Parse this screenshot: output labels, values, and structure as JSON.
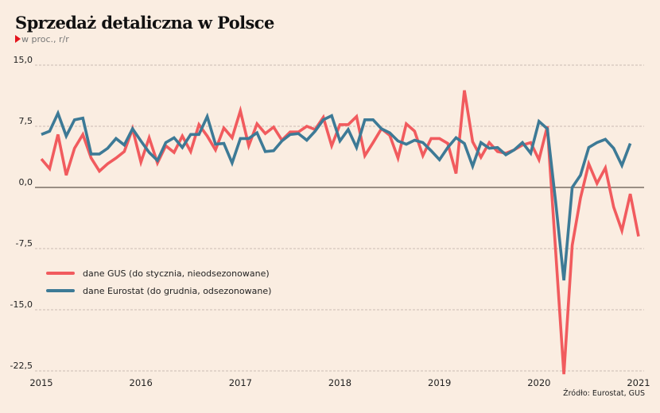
{
  "chart_data": {
    "type": "line",
    "title": "Sprzedaż detaliczna w Polsce",
    "subtitle": "w proc., r/r",
    "xlabel": "",
    "ylabel": "",
    "ylim": [
      -22.5,
      15
    ],
    "yticks": [
      15,
      7.5,
      0,
      -7.5,
      -15,
      -22.5
    ],
    "ytick_labels": [
      "15,0",
      "7,5",
      "0,0",
      "-7,5",
      "-15,0",
      "-22,5"
    ],
    "xlim": [
      "2015-01",
      "2021-01"
    ],
    "xticks": [
      "2015",
      "2016",
      "2017",
      "2018",
      "2019",
      "2020",
      "2021"
    ],
    "grid": "horizontal dashed",
    "legend_position": "lower-left",
    "source": "Źródło: Eurostat, GUS",
    "series": [
      {
        "name": "dane GUS (do stycznia, nieodsezonowane)",
        "color": "#f15b5e",
        "start": "2015-01",
        "frequency": "monthly",
        "values": [
          3.5,
          2.3,
          6.5,
          1.5,
          4.8,
          6.5,
          3.6,
          2.0,
          2.9,
          3.6,
          4.4,
          7.2,
          3.1,
          6.1,
          3.0,
          5.1,
          4.3,
          6.3,
          4.4,
          7.7,
          6.3,
          4.6,
          7.3,
          6.1,
          9.4,
          5.1,
          7.8,
          6.6,
          7.4,
          5.8,
          6.8,
          6.8,
          7.5,
          7.1,
          8.6,
          5.1,
          7.7,
          7.7,
          8.7,
          3.9,
          5.5,
          7.2,
          6.4,
          3.6,
          7.8,
          6.9,
          3.9,
          6.0,
          6.0,
          5.4,
          1.7,
          11.9,
          5.6,
          3.7,
          5.5,
          4.4,
          4.2,
          4.6,
          5.2,
          5.5,
          3.4,
          7.5,
          -7.7,
          -22.9,
          -7.1,
          -1.3,
          2.9,
          0.5,
          2.4,
          -2.4,
          -5.3,
          -0.8,
          -6.0
        ]
      },
      {
        "name": "dane Eurostat (do grudnia, odsezonowane)",
        "color": "#3d7a96",
        "start": "2015-01",
        "frequency": "monthly",
        "values": [
          6.5,
          6.9,
          9.1,
          6.3,
          8.3,
          8.5,
          4.1,
          4.1,
          4.8,
          6.0,
          5.2,
          7.2,
          5.7,
          4.3,
          3.3,
          5.5,
          6.1,
          4.9,
          6.5,
          6.5,
          8.7,
          5.3,
          5.4,
          3.0,
          6.0,
          6.0,
          6.7,
          4.4,
          4.5,
          5.7,
          6.5,
          6.6,
          5.8,
          6.9,
          8.3,
          8.8,
          5.7,
          7.1,
          4.9,
          8.3,
          8.3,
          7.2,
          6.7,
          5.7,
          5.3,
          5.8,
          5.5,
          4.5,
          3.4,
          4.9,
          6.1,
          5.4,
          2.6,
          5.5,
          4.8,
          4.9,
          4.0,
          4.6,
          5.5,
          4.2,
          8.1,
          7.2,
          -1.7,
          -11.4,
          0.0,
          1.5,
          4.9,
          5.5,
          5.9,
          4.8,
          2.7,
          5.4
        ]
      }
    ]
  }
}
